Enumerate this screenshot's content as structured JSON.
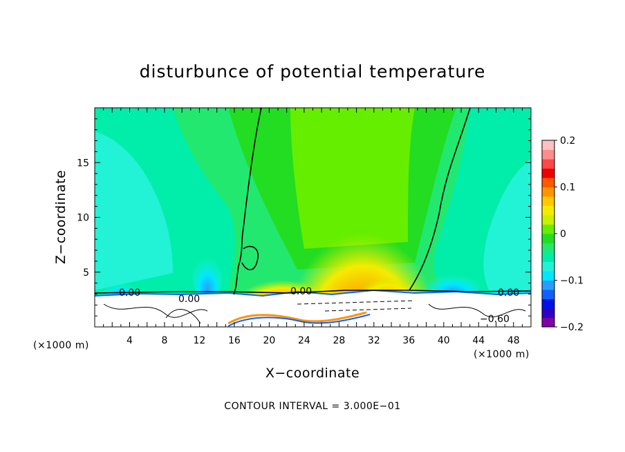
{
  "chart_data": {
    "type": "heatmap",
    "title": "disturbunce of potential temperature",
    "xlabel": "X−coordinate",
    "ylabel": "Z−coordinate",
    "x_unit_left": "(×1000 m)",
    "x_unit_right": "(×1000 m)",
    "xlim": [
      0,
      50
    ],
    "ylim": [
      0,
      20
    ],
    "xticks": [
      4,
      8,
      12,
      16,
      20,
      24,
      28,
      32,
      36,
      40,
      44,
      48
    ],
    "yticks": [
      5,
      10,
      15
    ],
    "colorbar": {
      "min": -0.2,
      "max": 0.2,
      "tick_labels": [
        "0.2",
        "0.1",
        "0",
        "−0.1",
        "−0.2"
      ],
      "tick_values": [
        0.2,
        0.1,
        0,
        -0.1,
        -0.2
      ],
      "levels": 16,
      "colors": [
        "#8000a8",
        "#3000c0",
        "#0010e8",
        "#1060ff",
        "#2a9cff",
        "#00e6ff",
        "#22f2d6",
        "#00eeaa",
        "#22e870",
        "#22dd22",
        "#66ee00",
        "#c8f000",
        "#f4ec00",
        "#ffc800",
        "#ff9400",
        "#ff5800",
        "#f00000",
        "#ff4848",
        "#ff8c8c",
        "#ffc0c0"
      ]
    },
    "contour_labels": [
      "0.00",
      "0.00",
      "0.00",
      "0.00",
      "−0.60"
    ],
    "footer": "CONTOUR INTERVAL = 3.000E−01"
  }
}
